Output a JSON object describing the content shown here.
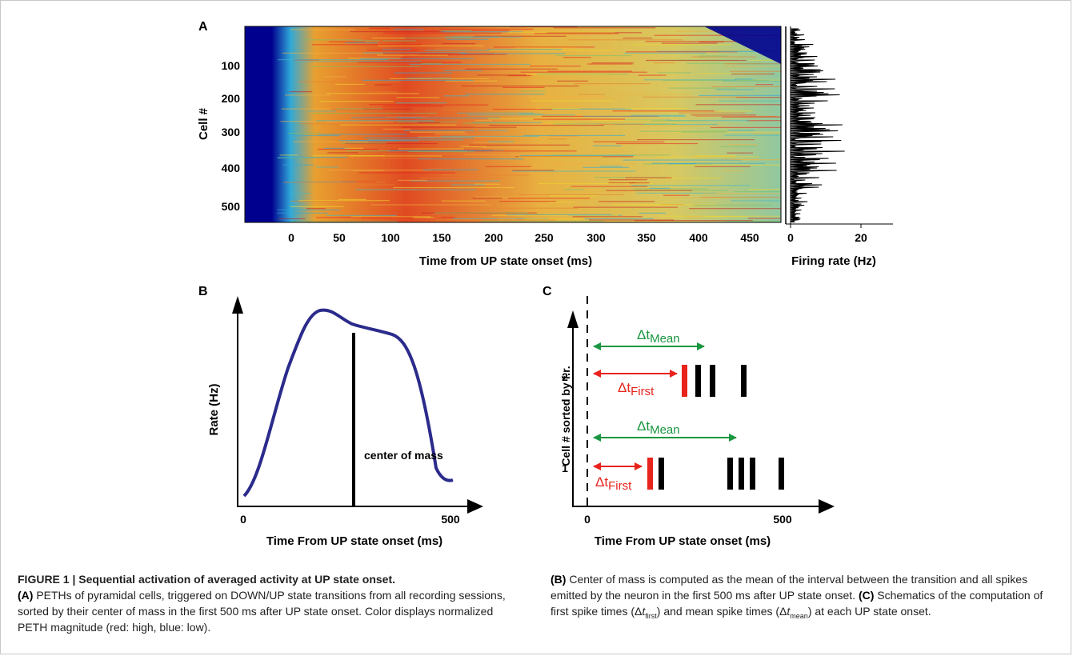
{
  "panel_a": {
    "label": "A",
    "y_label": "Cell #",
    "y_ticks": [
      "100",
      "200",
      "300",
      "400",
      "500"
    ],
    "x_ticks": [
      "0",
      "50",
      "100",
      "150",
      "200",
      "250",
      "300",
      "350",
      "400",
      "450"
    ],
    "x_label": "Time from UP state onset (ms)",
    "rate_x_ticks": [
      "0",
      "20"
    ],
    "rate_x_label": "Firing rate (Hz)",
    "colors": {
      "background": "#00008f",
      "high": "#e8231c",
      "mid": "#f0d530",
      "low": "#2fa8d8"
    }
  },
  "panel_b": {
    "label": "B",
    "y_label": "Rate (Hz)",
    "x_label": "Time From UP state onset (ms)",
    "x_tick_start": "0",
    "x_tick_end": "500",
    "annotation": "center of mass",
    "curve_color": "#2b2b8c"
  },
  "panel_c": {
    "label": "C",
    "y_label": "Cell # sorted by f.r.",
    "y_ticks": [
      "1",
      "2"
    ],
    "x_tick_start": "0",
    "x_tick_end": "500",
    "x_label": "Time From UP state onset (ms)",
    "dt_mean_base": "Δt",
    "dt_mean_sub": "Mean",
    "dt_first_base": "Δt",
    "dt_first_sub": "First",
    "mean_color": "#1a9641",
    "first_color": "#e8231c"
  },
  "caption": {
    "title": "FIGURE 1 | Sequential activation of averaged activity at UP state onset.",
    "a_tag": "(A)",
    "a_text": " PETHs of pyramidal cells, triggered on DOWN/UP state transitions from all recording sessions, sorted by their center of mass in the first 500 ms after UP state onset. Color displays normalized PETH magnitude (red: high, blue: low).",
    "b_tag": "(B)",
    "b_text": " Center of mass is computed as the mean of the interval between the transition and all spikes emitted by the neuron in the first 500 ms after UP state onset. ",
    "c_tag": "(C)",
    "c_text_1": " Schematics of the computation of first spike times (Δ",
    "c_sub_first": "first",
    "c_text_2": ") and mean spike times (Δ",
    "c_sub_mean": "mean",
    "c_text_3": ") at each UP state onset."
  }
}
